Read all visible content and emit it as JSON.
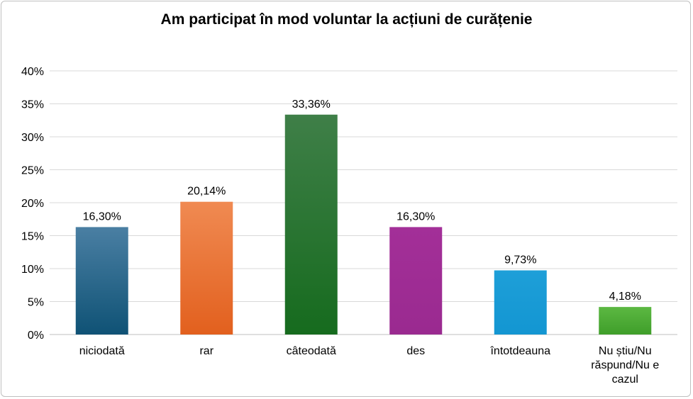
{
  "chart_data": {
    "type": "bar",
    "title": "Am participat în mod voluntar la acțiuni de curățenie",
    "xlabel": "",
    "ylabel": "",
    "ylim": [
      0,
      40
    ],
    "yticks": [
      "0%",
      "5%",
      "10%",
      "15%",
      "20%",
      "25%",
      "30%",
      "35%",
      "40%"
    ],
    "grid": true,
    "categories": [
      [
        "niciodată"
      ],
      [
        "rar"
      ],
      [
        "câteodată"
      ],
      [
        "des"
      ],
      [
        "întotdeauna"
      ],
      [
        "Nu știu/Nu",
        "răspund/Nu e",
        "cazul"
      ]
    ],
    "values": [
      16.3,
      20.14,
      33.36,
      16.3,
      9.73,
      4.18
    ],
    "value_labels": [
      "16,30%",
      "20,14%",
      "33,36%",
      "16,30%",
      "9,73%",
      "4,18%"
    ],
    "colors": [
      [
        "#4a7fa3",
        "#0f5275"
      ],
      [
        "#f08a52",
        "#e2601e"
      ],
      [
        "#3f7f48",
        "#166b1e"
      ],
      [
        "#a32f98",
        "#9a2a90"
      ],
      [
        "#1e9fd8",
        "#1396d2"
      ],
      [
        "#5cb842",
        "#3f9e2a"
      ]
    ]
  }
}
